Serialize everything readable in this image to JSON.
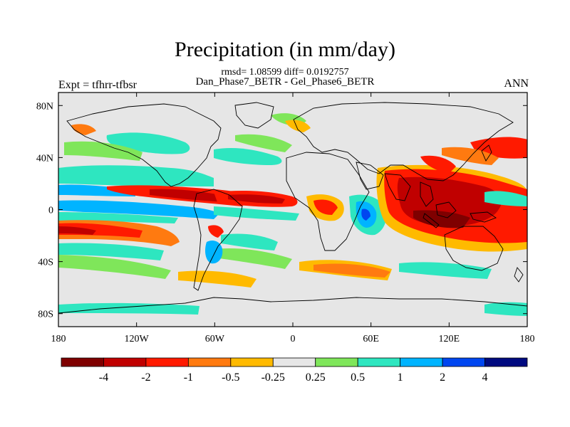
{
  "title": "Precipitation (in mm/day)",
  "stats_line": "rmsd= 1.08599 diff= 0.0192757",
  "comparison_line": "Dan_Phase7_BETR - Gel_Phase6_BETR",
  "experiment_label": "Expt = tfhrr-tfbsr",
  "season_label": "ANN",
  "map": {
    "lon_range": [
      -180,
      180
    ],
    "lat_range": [
      -90,
      90
    ],
    "x_ticks": [
      {
        "lon": -180,
        "label": "180"
      },
      {
        "lon": -120,
        "label": "120W"
      },
      {
        "lon": -60,
        "label": "60W"
      },
      {
        "lon": 0,
        "label": "0"
      },
      {
        "lon": 60,
        "label": "60E"
      },
      {
        "lon": 120,
        "label": "120E"
      },
      {
        "lon": 180,
        "label": "180"
      }
    ],
    "y_ticks": [
      {
        "lat": 80,
        "label": "80N"
      },
      {
        "lat": 40,
        "label": "40N"
      },
      {
        "lat": 0,
        "label": "0"
      },
      {
        "lat": -40,
        "label": "40S"
      },
      {
        "lat": -80,
        "label": "80S"
      }
    ],
    "background_color": "#e6e6e6"
  },
  "colorbar": {
    "colors": [
      "#7f0000",
      "#c00000",
      "#ff1a00",
      "#ff7a10",
      "#ffba00",
      "#e6e6e6",
      "#7fe65a",
      "#2ee6c0",
      "#00b4ff",
      "#0046f0",
      "#000a80"
    ],
    "labels": [
      "-4",
      "-2",
      "-1",
      "-0.5",
      "-0.25",
      "0.25",
      "0.5",
      "1",
      "2",
      "4"
    ]
  }
}
